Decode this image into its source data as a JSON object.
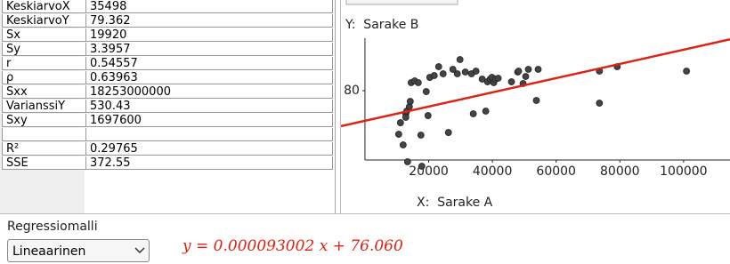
{
  "table": {
    "rows": [
      [
        "KeskiarvoX",
        35498
      ],
      [
        "KeskiarvoY",
        79.362
      ],
      [
        "Sx",
        19920
      ],
      [
        "Sy",
        3.3957
      ],
      [
        "r",
        0.54557
      ],
      [
        "ρ",
        0.63963
      ],
      [
        "Sxx",
        18253000000
      ],
      [
        "VarianssiY",
        530.43
      ],
      [
        "Sxy",
        1697600
      ],
      null,
      [
        "R²",
        0.29765
      ],
      [
        "SSE",
        372.55
      ]
    ]
  },
  "chart_data": {
    "type": "scatter",
    "y_label": "Y:  Sarake B",
    "x_label": "X:  Sarake A",
    "color": "#444444",
    "x": [
      10590,
      11150,
      11990,
      12820,
      12820,
      13100,
      13940,
      14220,
      13380,
      14500,
      15610,
      16730,
      17560,
      17840,
      19230,
      19790,
      20350,
      21740,
      23140,
      24530,
      26200,
      27600,
      28990,
      29830,
      31500,
      33450,
      34010,
      34840,
      36800,
      37910,
      38470,
      39300,
      39860,
      40420,
      40980,
      41810,
      45990,
      47950,
      48220,
      49620,
      50450,
      51290,
      53800,
      54360,
      73590,
      73590,
      79170,
      100910
    ],
    "values": [
      74.3,
      75.81,
      72.91,
      76.98,
      76.51,
      77.33,
      77.91,
      78.6,
      70.7,
      81.05,
      81.28,
      81.05,
      74.19,
      70.12,
      79.88,
      76.74,
      81.74,
      81.98,
      83.14,
      82.21,
      74.53,
      82.79,
      82.21,
      84.07,
      82.44,
      82.21,
      76.98,
      82.56,
      81.51,
      77.33,
      81.16,
      81.51,
      81.74,
      81.05,
      81.51,
      81.63,
      81.16,
      82.44,
      82.56,
      80.93,
      81.86,
      82.79,
      78.72,
      82.79,
      78.37,
      82.56,
      83.14,
      82.56
    ],
    "xlim": [
      -7526,
      114564
    ],
    "ylim": [
      69.77,
      90.7
    ],
    "xticks": [
      20000,
      40000,
      60000,
      80000,
      100000
    ],
    "yticks": [
      80
    ],
    "regression": {
      "color": "#dd2211",
      "lhs": "y =",
      "slope": 9.3002e-05,
      "term": "x +",
      "intercept": {
        "value": 76.06,
        "label": "76.060"
      }
    }
  },
  "controls": {
    "model_label": "Regressiomalli",
    "model": "Lineaarinen"
  }
}
